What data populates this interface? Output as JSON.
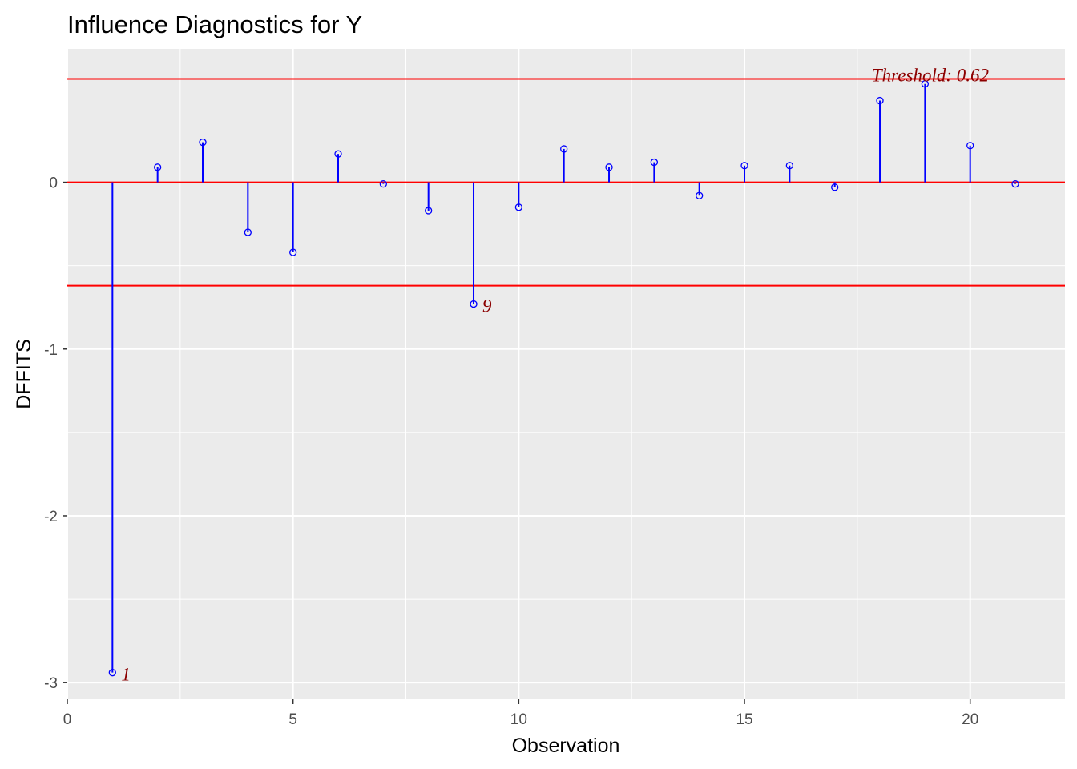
{
  "chart_data": {
    "type": "scatter",
    "title": "Influence Diagnostics for Y",
    "xlabel": "Observation",
    "ylabel": "DFFITS",
    "xlim": [
      0,
      22.1
    ],
    "ylim": [
      -3.1,
      0.8
    ],
    "x_ticks": [
      0,
      5,
      10,
      15,
      20
    ],
    "y_ticks": [
      -3,
      -2,
      -1,
      0
    ],
    "grid": true,
    "background": "#ebebeb",
    "colors": {
      "stem": "#0000ff",
      "point": "#0000ff",
      "reference": "#ff0000",
      "annotation": "#8b0000"
    },
    "threshold": 0.62,
    "threshold_label": "Threshold: 0.62",
    "series": [
      {
        "x": [
          1,
          2,
          3,
          4,
          5,
          6,
          7,
          8,
          9,
          10,
          11,
          12,
          13,
          14,
          15,
          16,
          17,
          18,
          19,
          20,
          21
        ],
        "values": [
          -2.94,
          0.09,
          0.24,
          -0.3,
          -0.42,
          0.17,
          -0.01,
          -0.17,
          -0.73,
          -0.15,
          0.2,
          0.09,
          0.12,
          -0.08,
          0.1,
          0.1,
          -0.03,
          0.49,
          0.59,
          0.22,
          -0.01
        ]
      }
    ],
    "point_labels": [
      {
        "x": 1,
        "y": -2.94,
        "text": "1"
      },
      {
        "x": 9,
        "y": -0.73,
        "text": "9"
      }
    ]
  }
}
